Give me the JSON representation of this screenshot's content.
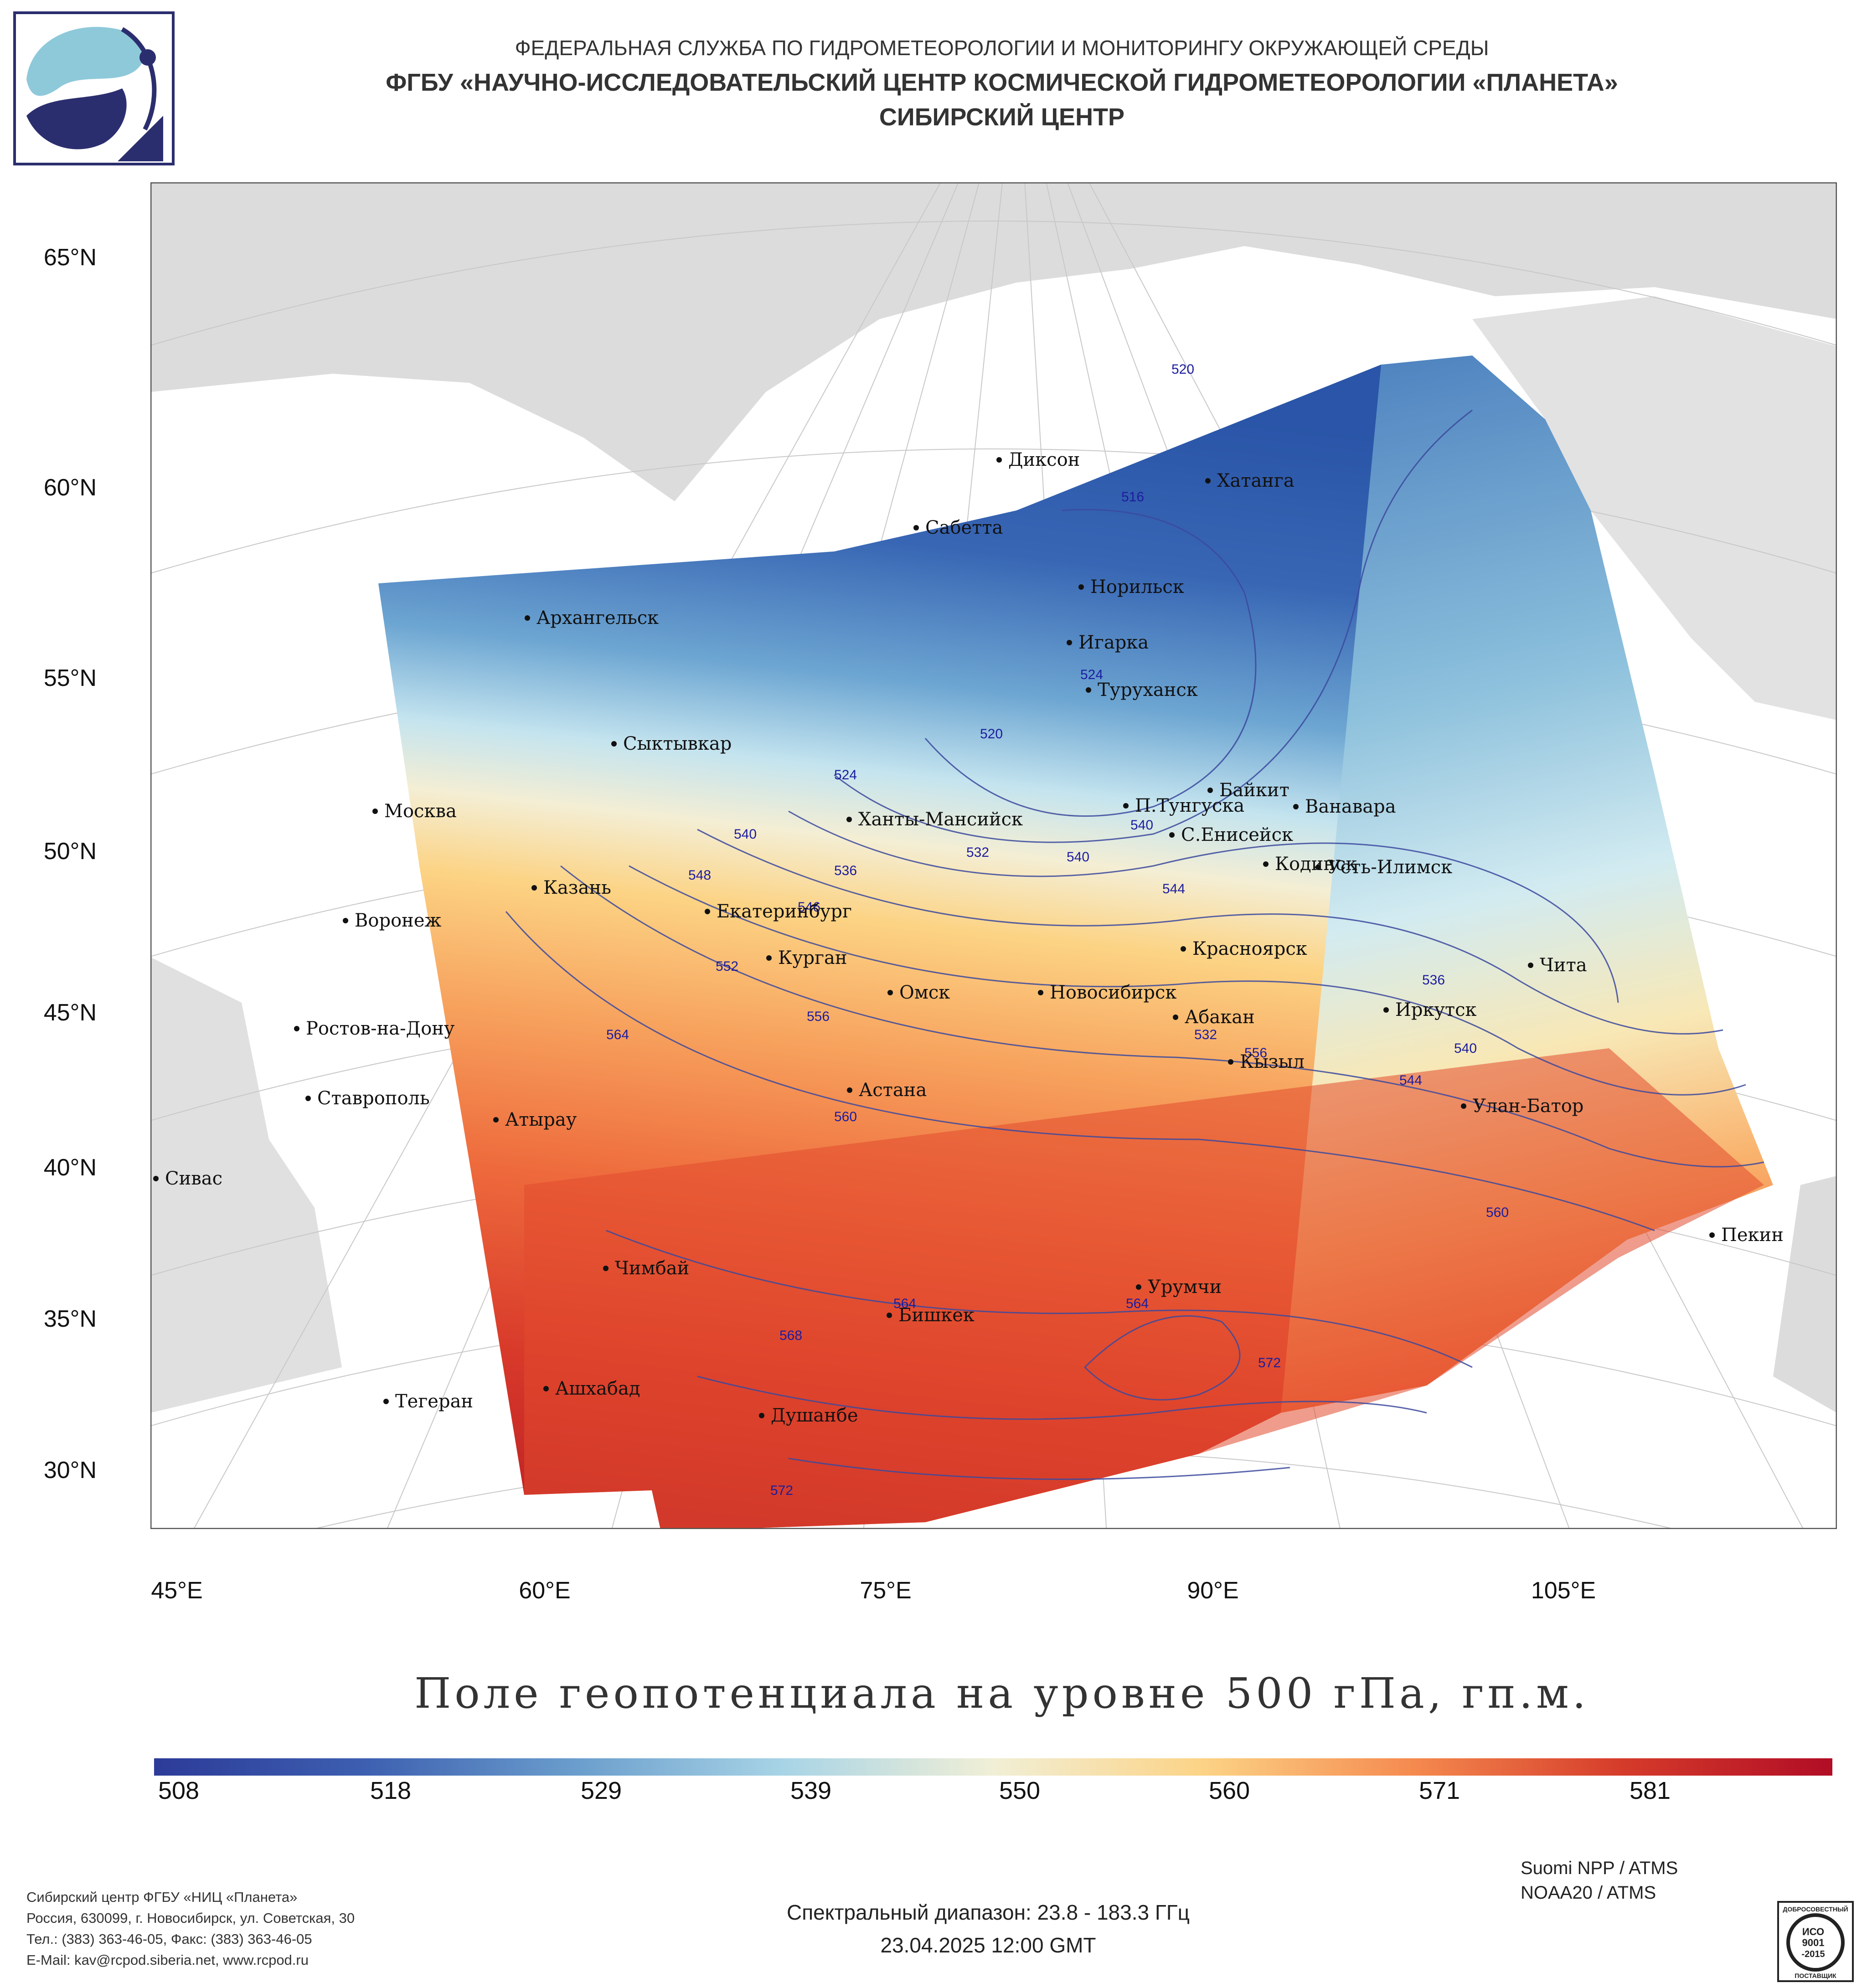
{
  "header": {
    "line1": "ФЕДЕРАЛЬНАЯ СЛУЖБА ПО ГИДРОМЕТЕОРОЛОГИИ И МОНИТОРИНГУ ОКРУЖАЮЩЕЙ СРЕДЫ",
    "line2": "ФГБУ «НАУЧНО-ИССЛЕДОВАТЕЛЬСКИЙ ЦЕНТР КОСМИЧЕСКОЙ ГИДРОМЕТЕОРОЛОГИИ «ПЛАНЕТА»",
    "line3": "СИБИРСКИЙ ЦЕНТР"
  },
  "map": {
    "lat_labels": [
      "65°N",
      "60°N",
      "55°N",
      "50°N",
      "45°N",
      "40°N",
      "35°N",
      "30°N"
    ],
    "lon_labels": [
      "45°E",
      "60°E",
      "75°E",
      "90°E",
      "105°E"
    ],
    "cities": [
      {
        "name": "Диксон"
      },
      {
        "name": "Хатанга"
      },
      {
        "name": "Сабетта"
      },
      {
        "name": "Норильск"
      },
      {
        "name": "Архангельск"
      },
      {
        "name": "Игарка"
      },
      {
        "name": "Туруханск"
      },
      {
        "name": "Сыктывкар"
      },
      {
        "name": "Байкит"
      },
      {
        "name": "П.Тунгуска"
      },
      {
        "name": "Ванавара"
      },
      {
        "name": "Москва"
      },
      {
        "name": "Ханты-Мансийск"
      },
      {
        "name": "С.Енисейск"
      },
      {
        "name": "Кодинск"
      },
      {
        "name": "Усть-Илимск"
      },
      {
        "name": "Казань"
      },
      {
        "name": "Екатеринбург"
      },
      {
        "name": "Воронеж"
      },
      {
        "name": "Красноярск"
      },
      {
        "name": "Курган"
      },
      {
        "name": "Чита"
      },
      {
        "name": "Омск"
      },
      {
        "name": "Новосибирск"
      },
      {
        "name": "Иркутск"
      },
      {
        "name": "Ростов-на-Дону"
      },
      {
        "name": "Абакан"
      },
      {
        "name": "Кызыл"
      },
      {
        "name": "Ставрополь"
      },
      {
        "name": "Астана"
      },
      {
        "name": "Улан-Батор"
      },
      {
        "name": "Атырау"
      },
      {
        "name": "Сивас"
      },
      {
        "name": "Пекин"
      },
      {
        "name": "Чимбай"
      },
      {
        "name": "Урумчи"
      },
      {
        "name": "Бишкек"
      },
      {
        "name": "Ашхабад"
      },
      {
        "name": "Душанбе"
      },
      {
        "name": "Тегеран"
      }
    ],
    "contour_labels": [
      "520",
      "516",
      "524",
      "520",
      "524",
      "540",
      "540",
      "532",
      "536",
      "540",
      "548",
      "546",
      "552",
      "556",
      "564",
      "560",
      "536",
      "540",
      "544",
      "556",
      "560",
      "564",
      "568",
      "572",
      "564",
      "572",
      "544",
      "532"
    ]
  },
  "title": "Поле геопотенциала на уровне 500 гПа, гп.м.",
  "colorbar": {
    "labels": [
      "508",
      "518",
      "529",
      "539",
      "550",
      "560",
      "571",
      "581"
    ],
    "colors": [
      "#2c3b98",
      "#3d5fb0",
      "#6a9dcc",
      "#a8d4e6",
      "#f1efd6",
      "#fcd386",
      "#f58a4f",
      "#d53b2a",
      "#b10d26"
    ]
  },
  "footer": {
    "org_line1": "Сибирский центр ФГБУ «НИЦ «Планета»",
    "org_line2": "Россия, 630099, г. Новосибирск, ул. Советская, 30",
    "org_line3": "Тел.: (383) 363-46-05, Факс: (383) 363-46-05",
    "org_line4": "E-Mail: kav@rcpod.siberia.net, www.rcpod.ru",
    "sat1": "Suomi NPP / ATMS",
    "sat2": "NOAA20 / ATMS",
    "spectral": "Спектральный диапазон: 23.8 - 183.3 ГГц",
    "datetime": "23.04.2025 12:00 GMT",
    "badge_top": "ДОБРОСОВЕСТНЫЙ",
    "badge_l1": "ИСО",
    "badge_l2": "9001",
    "badge_l3": "-2015",
    "badge_bottom": "ПОСТАВЩИК"
  }
}
